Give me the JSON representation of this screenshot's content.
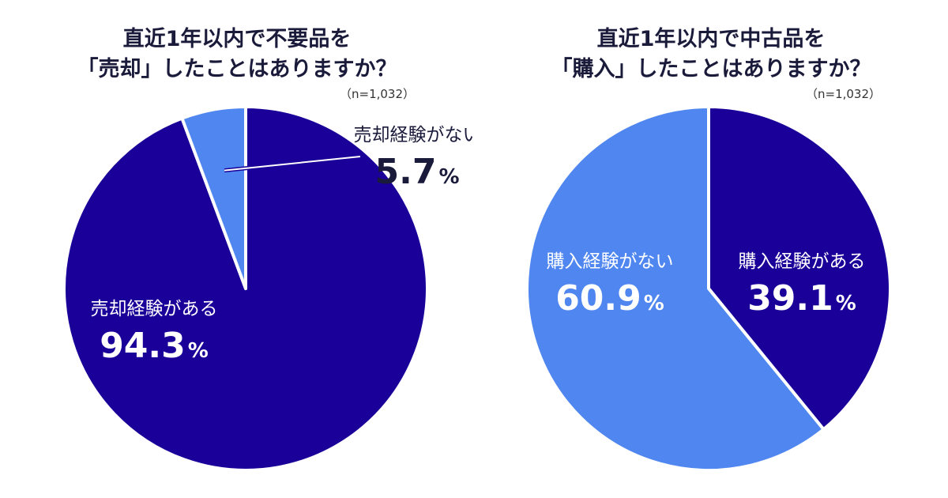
{
  "charts": [
    {
      "title_line1": "直近1年以内で不要品を",
      "title_line2": "「売却」したことはありますか？",
      "sample_size": "（n=1,032）"
    },
    {
      "title_line1": "直近1年以内で中古品を",
      "title_line2": "「購入」したことはありますか？",
      "sample_size": "（n=1,032）"
    }
  ],
  "chart_data": [
    {
      "type": "pie",
      "title": "直近1年以内で不要品を「売却」したことはありますか？",
      "slices": [
        {
          "label": "売却経験がある",
          "value": 94.3,
          "value_text": "94.3",
          "unit": "%",
          "color": "#1a0099",
          "text_color": "#ffffff"
        },
        {
          "label": "売却経験がない",
          "value": 5.7,
          "value_text": "5.7",
          "unit": "%",
          "color": "#4f86f0",
          "text_color": "#1a1a3a"
        }
      ]
    },
    {
      "type": "pie",
      "title": "直近1年以内で中古品を「購入」したことはありますか？",
      "slices": [
        {
          "label": "購入経験がある",
          "value": 39.1,
          "value_text": "39.1",
          "unit": "%",
          "color": "#1a0099",
          "text_color": "#ffffff"
        },
        {
          "label": "購入経験がない",
          "value": 60.9,
          "value_text": "60.9",
          "unit": "%",
          "color": "#4f86f0",
          "text_color": "#ffffff"
        }
      ]
    }
  ]
}
